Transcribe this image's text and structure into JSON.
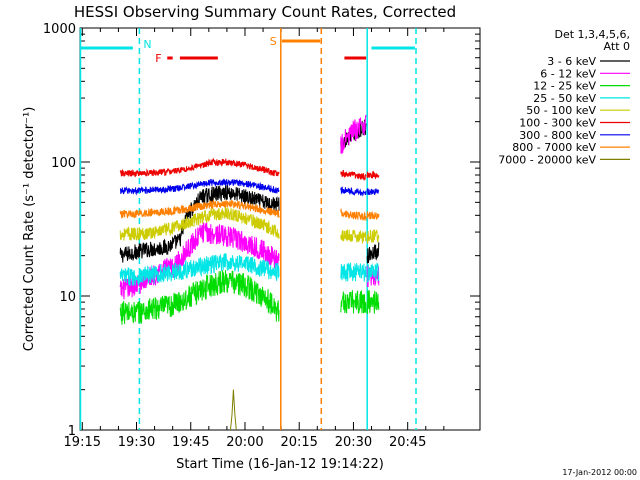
{
  "chart_data": {
    "type": "line",
    "title": "HESSI Observing Summary Count Rates, Corrected",
    "xlabel": "Start Time (16-Jan-12 19:14:22)",
    "ylabel": "Corrected Count Rate (s⁻¹ detector⁻¹)",
    "y_scale": "log",
    "ylim": [
      1,
      1000
    ],
    "xlim_minutes": [
      14.37,
      125
    ],
    "x_ticks": [
      {
        "label": "19:15",
        "minutes": 15
      },
      {
        "label": "19:30",
        "minutes": 30
      },
      {
        "label": "19:45",
        "minutes": 45
      },
      {
        "label": "20:00",
        "minutes": 60
      },
      {
        "label": "20:15",
        "minutes": 75
      },
      {
        "label": "20:30",
        "minutes": 90
      },
      {
        "label": "20:45",
        "minutes": 105
      }
    ],
    "y_tick_labels": [
      {
        "label": "1",
        "value": 1
      },
      {
        "label": "10",
        "value": 10
      },
      {
        "label": "100",
        "value": 100
      },
      {
        "label": "1000",
        "value": 1000
      }
    ],
    "legend": {
      "position": "right",
      "header": [
        "Det 1,3,4,5,6,",
        "Att 0"
      ],
      "entries": [
        {
          "label": "3 - 6 keV",
          "color": "#000000"
        },
        {
          "label": "6 - 12 keV",
          "color": "#ff00ff"
        },
        {
          "label": "12 - 25 keV",
          "color": "#00dd00"
        },
        {
          "label": "25 - 50 keV",
          "color": "#00e5e5"
        },
        {
          "label": "50 - 100 keV",
          "color": "#cccc00"
        },
        {
          "label": "100 - 300 keV",
          "color": "#ee0000"
        },
        {
          "label": "300 - 800 keV",
          "color": "#0000ee"
        },
        {
          "label": "800 - 7000 keV",
          "color": "#ff8000"
        },
        {
          "label": "7000 - 20000 keV",
          "color": "#808000"
        }
      ]
    },
    "observing_flags": {
      "night_color": "#00e5e5",
      "saa_color": "#ff8000",
      "flare_color": "#ee0000",
      "night_label": "N",
      "flare_label": "F",
      "saa_label": "S",
      "night_boundaries_minutes": [
        30.8,
        93.8,
        107.3
      ],
      "saa_boundaries_minutes": [
        69.9,
        81.1
      ],
      "night_bars_minutes": [
        [
          14.4,
          29.0
        ],
        [
          95.0,
          107.0
        ]
      ],
      "saa_bar_minutes": [
        70.2,
        80.8
      ],
      "flare_bars_minutes": [
        [
          38.5,
          40.0
        ],
        [
          42.0,
          52.5
        ],
        [
          87.5,
          93.5
        ]
      ]
    },
    "series": [
      {
        "name": "3 - 6 keV",
        "color": "#000000",
        "segments": [
          {
            "x": [
              25.5,
              32,
              38,
              42,
              44,
              48,
              55,
              60,
              65,
              69.5
            ],
            "y": [
              20,
              22,
              23,
              26,
              40,
              55,
              60,
              55,
              50,
              48
            ]
          },
          {
            "x": [
              86.5,
              88,
              90,
              92,
              93.5
            ],
            "y": [
              130,
              145,
              160,
              175,
              185
            ]
          },
          {
            "x": [
              93.8,
              97
            ],
            "y": [
              20,
              22
            ]
          }
        ]
      },
      {
        "name": "6 - 12 keV",
        "color": "#ff00ff",
        "segments": [
          {
            "x": [
              25.5,
              30,
              34,
              38,
              40,
              44,
              48,
              55,
              60,
              65,
              69.5
            ],
            "y": [
              11,
              12,
              14,
              16,
              16,
              22,
              30,
              28,
              25,
              22,
              18
            ]
          },
          {
            "x": [
              86.5,
              88,
              90,
              92,
              93.5
            ],
            "y": [
              130,
              150,
              170,
              185,
              190
            ]
          },
          {
            "x": [
              93.8,
              97
            ],
            "y": [
              14,
              14
            ]
          }
        ]
      },
      {
        "name": "12 - 25 keV",
        "color": "#00dd00",
        "segments": [
          {
            "x": [
              25.5,
              30,
              35,
              40,
              45,
              50,
              55,
              60,
              65,
              69.5
            ],
            "y": [
              7.5,
              7.5,
              8,
              8.5,
              10,
              12,
              13,
              12,
              10,
              7.5
            ]
          },
          {
            "x": [
              86.5,
              90,
              93.5
            ],
            "y": [
              9,
              9,
              9
            ]
          },
          {
            "x": [
              93.8,
              97
            ],
            "y": [
              9,
              9
            ]
          }
        ]
      },
      {
        "name": "25 - 50 keV",
        "color": "#00e5e5",
        "segments": [
          {
            "x": [
              25.5,
              30,
              35,
              40,
              45,
              50,
              55,
              60,
              65,
              69.5
            ],
            "y": [
              14,
              14,
              14.5,
              15,
              16,
              17,
              18,
              17.5,
              16,
              15
            ]
          },
          {
            "x": [
              86.5,
              90,
              93.5
            ],
            "y": [
              15,
              15,
              15
            ]
          },
          {
            "x": [
              93.8,
              97
            ],
            "y": [
              15,
              15
            ]
          }
        ]
      },
      {
        "name": "50 - 100 keV",
        "color": "#cccc00",
        "segments": [
          {
            "x": [
              25.5,
              30,
              35,
              40,
              45,
              50,
              55,
              60,
              65,
              69.5
            ],
            "y": [
              29,
              29,
              30,
              32,
              36,
              40,
              42,
              38,
              34,
              30
            ]
          },
          {
            "x": [
              86.5,
              90,
              93.5
            ],
            "y": [
              28,
              28,
              27
            ]
          },
          {
            "x": [
              93.8,
              97
            ],
            "y": [
              28,
              28
            ]
          }
        ]
      },
      {
        "name": "100 - 300 keV",
        "color": "#ee0000",
        "segments": [
          {
            "x": [
              25.5,
              30,
              35,
              40,
              45,
              50,
              55,
              60,
              65,
              69.5
            ],
            "y": [
              82,
              82,
              83,
              85,
              90,
              98,
              100,
              95,
              88,
              80
            ]
          },
          {
            "x": [
              86.5,
              90,
              93.5
            ],
            "y": [
              82,
              80,
              78
            ]
          },
          {
            "x": [
              93.8,
              97
            ],
            "y": [
              80,
              80
            ]
          }
        ]
      },
      {
        "name": "300 - 800 keV",
        "color": "#0000ee",
        "segments": [
          {
            "x": [
              25.5,
              30,
              35,
              40,
              45,
              50,
              55,
              60,
              65,
              69.5
            ],
            "y": [
              61,
              61,
              62,
              63,
              66,
              70,
              71,
              69,
              65,
              61
            ]
          },
          {
            "x": [
              86.5,
              90,
              93.5
            ],
            "y": [
              62,
              60,
              59
            ]
          },
          {
            "x": [
              93.8,
              97
            ],
            "y": [
              60,
              60
            ]
          }
        ]
      },
      {
        "name": "800 - 7000 keV",
        "color": "#ff8000",
        "segments": [
          {
            "x": [
              25.5,
              30,
              35,
              40,
              45,
              50,
              55,
              60,
              65,
              69.5
            ],
            "y": [
              41,
              41,
              42,
              43,
              45,
              48,
              49,
              47,
              44,
              41
            ]
          },
          {
            "x": [
              86.5,
              90,
              93.5
            ],
            "y": [
              42,
              40,
              39
            ]
          },
          {
            "x": [
              93.8,
              97
            ],
            "y": [
              40,
              40
            ]
          }
        ]
      },
      {
        "name": "7000 - 20000 keV",
        "color": "#808000",
        "segments": [
          {
            "x": [
              56,
              56.4,
              56.8,
              57.2,
              57.6
            ],
            "y": [
              1,
              1.3,
              2,
              1.3,
              1
            ]
          }
        ]
      }
    ]
  },
  "footer": {
    "date_stamp": "17-Jan-2012 00:00"
  }
}
